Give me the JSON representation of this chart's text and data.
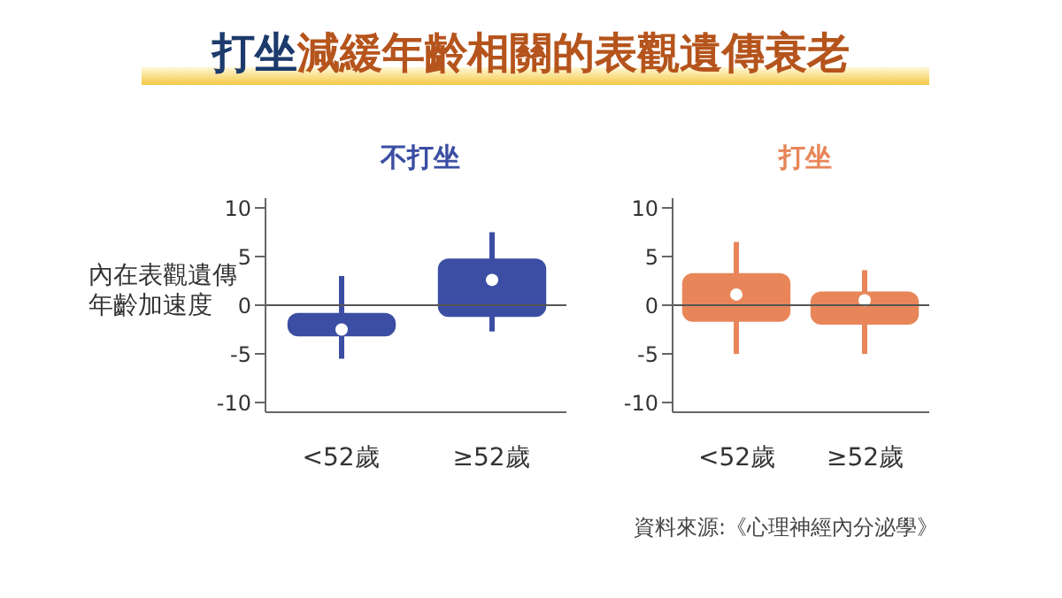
{
  "chart_data": [
    {
      "type": "box",
      "title": "打坐減緩年齡相關的表觀遺傳衰老",
      "subtitle": "不打坐",
      "ylabel": "內在表觀遺傳年齡加速度",
      "categories": [
        "<52歲",
        "≥52歲"
      ],
      "ylim": [
        -11,
        11
      ],
      "yticks": [
        -10,
        -5,
        0,
        5,
        10
      ],
      "ref_lines": [
        {
          "axis": "y",
          "value": 0,
          "color": "#555555"
        }
      ],
      "annotations": [
        "資料來源:《心理神經內分泌學》"
      ],
      "series": [
        {
          "color": "#3b4ea3",
          "boxes": [
            {
              "low": -5.5,
              "q1": -3.2,
              "median": -2.5,
              "q3": -0.8,
              "high": 3
            },
            {
              "low": -2.7,
              "q1": -1.2,
              "median": 2.6,
              "q3": 4.8,
              "high": 7.5
            }
          ]
        }
      ]
    },
    {
      "type": "box",
      "subtitle": "打坐",
      "categories": [
        "<52歲",
        "≥52歲"
      ],
      "ylim": [
        -11,
        11
      ],
      "yticks": [
        -10,
        -5,
        0,
        5,
        10
      ],
      "ref_lines": [
        {
          "axis": "y",
          "value": 0,
          "color": "#555555"
        }
      ],
      "series": [
        {
          "color": "#e8865a",
          "boxes": [
            {
              "low": -5,
              "q1": -1.7,
              "median": 1.1,
              "q3": 3.3,
              "high": 6.5
            },
            {
              "low": -5,
              "q1": -2,
              "median": 0.5,
              "q3": 1.4,
              "high": 3.6
            }
          ]
        }
      ]
    }
  ]
}
